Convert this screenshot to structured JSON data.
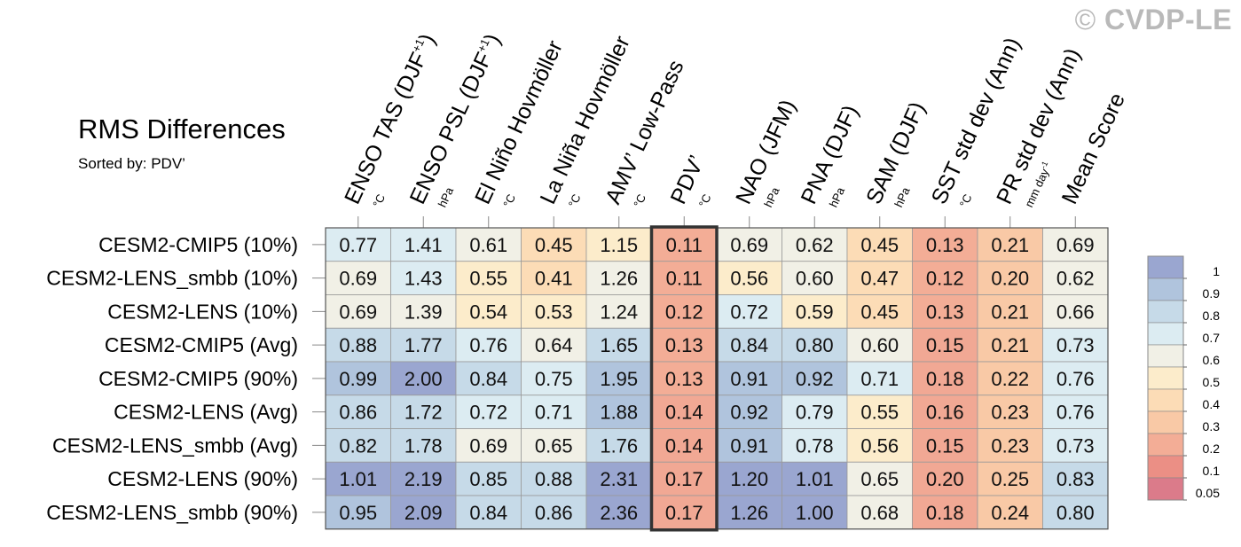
{
  "title": "RMS Differences",
  "subtitle": "Sorted by: PDV’",
  "copyright": {
    "symbol": "©",
    "text": "CVDP-LE",
    "color": "#b9b9b9"
  },
  "chart_data": {
    "type": "heatmap",
    "columns": [
      {
        "label": "ENSO TAS (DJF",
        "sup": "+1",
        "label_end": ")",
        "unit": "°C"
      },
      {
        "label": "ENSO PSL (DJF",
        "sup": "+1",
        "label_end": ")",
        "unit": "hPa"
      },
      {
        "label": "El Niño Hovmöller",
        "unit": "°C"
      },
      {
        "label": "La Niña Hovmöller",
        "unit": "°C"
      },
      {
        "label": "AMV’ Low-Pass",
        "unit": "°C"
      },
      {
        "label": "PDV’",
        "unit": "°C"
      },
      {
        "label": "NAO (JFM)",
        "unit": "hPa"
      },
      {
        "label": "PNA (DJF)",
        "unit": "hPa"
      },
      {
        "label": "SAM (DJF)",
        "unit": "hPa"
      },
      {
        "label": "SST std dev (Ann)",
        "unit": "°C"
      },
      {
        "label": "PR std dev (Ann)",
        "unit": "mm day",
        "unit_sup": "-1"
      },
      {
        "label": "Mean Score"
      }
    ],
    "rows": [
      "CESM2-CMIP5 (10%)",
      "CESM2-LENS_smbb (10%)",
      "CESM2-LENS (10%)",
      "CESM2-CMIP5 (Avg)",
      "CESM2-CMIP5 (90%)",
      "CESM2-LENS (Avg)",
      "CESM2-LENS_smbb (Avg)",
      "CESM2-LENS (90%)",
      "CESM2-LENS_smbb (90%)"
    ],
    "values": [
      [
        "0.77",
        "1.41",
        "0.61",
        "0.45",
        "1.15",
        "0.11",
        "0.69",
        "0.62",
        "0.45",
        "0.13",
        "0.21",
        "0.69"
      ],
      [
        "0.69",
        "1.43",
        "0.55",
        "0.41",
        "1.26",
        "0.11",
        "0.56",
        "0.60",
        "0.47",
        "0.12",
        "0.20",
        "0.62"
      ],
      [
        "0.69",
        "1.39",
        "0.54",
        "0.53",
        "1.24",
        "0.12",
        "0.72",
        "0.59",
        "0.45",
        "0.13",
        "0.21",
        "0.66"
      ],
      [
        "0.88",
        "1.77",
        "0.76",
        "0.64",
        "1.65",
        "0.13",
        "0.84",
        "0.80",
        "0.60",
        "0.15",
        "0.21",
        "0.73"
      ],
      [
        "0.99",
        "2.00",
        "0.84",
        "0.75",
        "1.95",
        "0.13",
        "0.91",
        "0.92",
        "0.71",
        "0.18",
        "0.22",
        "0.76"
      ],
      [
        "0.86",
        "1.72",
        "0.72",
        "0.71",
        "1.88",
        "0.14",
        "0.92",
        "0.79",
        "0.55",
        "0.16",
        "0.23",
        "0.76"
      ],
      [
        "0.82",
        "1.78",
        "0.69",
        "0.65",
        "1.76",
        "0.14",
        "0.91",
        "0.78",
        "0.56",
        "0.15",
        "0.23",
        "0.73"
      ],
      [
        "1.01",
        "2.19",
        "0.85",
        "0.88",
        "2.31",
        "0.17",
        "1.20",
        "1.01",
        "0.65",
        "0.20",
        "0.25",
        "0.83"
      ],
      [
        "0.95",
        "2.09",
        "0.84",
        "0.86",
        "2.36",
        "0.17",
        "1.26",
        "1.00",
        "0.68",
        "0.18",
        "0.24",
        "0.80"
      ]
    ],
    "highlighted_column": "PDV’",
    "colorbar": {
      "levels": [
        "1",
        "0.9",
        "0.8",
        "0.7",
        "0.6",
        "0.5",
        "0.4",
        "0.3",
        "0.2",
        "0.1",
        "0.05"
      ],
      "colors": [
        "#9aa6d0",
        "#b0c4dd",
        "#c6dae8",
        "#dcecf2",
        "#f1f0e6",
        "#fceccb",
        "#fcdcb6",
        "#f9c9a6",
        "#f3ad96",
        "#eb8f85",
        "#db7b8a"
      ]
    }
  }
}
